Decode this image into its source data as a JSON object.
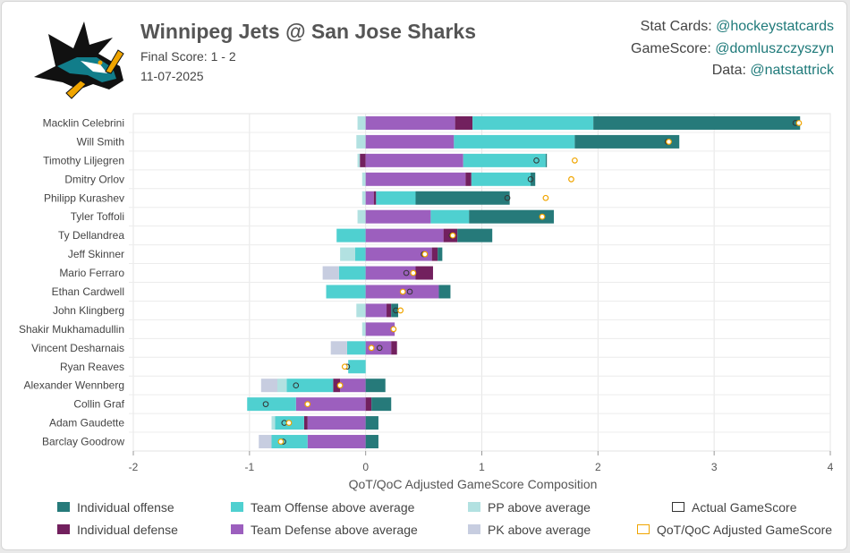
{
  "header": {
    "title": "Winnipeg Jets @ San Jose Sharks",
    "score_line": "Final Score: 1 - 2",
    "date": "11-07-2025"
  },
  "credits": [
    {
      "label": "Stat Cards: ",
      "handle": "@hockeystatcards"
    },
    {
      "label": "GameScore: ",
      "handle": "@domluszczyszyn"
    },
    {
      "label": "Data: ",
      "handle": "@natstattrick"
    }
  ],
  "colors": {
    "individual_offense": "#267a7a",
    "individual_defense": "#72205e",
    "team_offense": "#4fd0d0",
    "team_defense": "#9c5fbe",
    "pp": "#b2e1e1",
    "pk": "#c7cde0",
    "actual_marker": "#333333",
    "adjusted_marker": "#f0a500",
    "logo_teal": "#117d8a",
    "logo_black": "#111111"
  },
  "chart_data": {
    "type": "bar",
    "orientation": "horizontal stacked",
    "xlabel": "QoT/QoC Adjusted GameScore Composition",
    "xlim": [
      -2,
      4
    ],
    "xticks": [
      "-2",
      "-1",
      "0",
      "1",
      "2",
      "3",
      "4"
    ],
    "grid": true,
    "legend_position": "bottom",
    "series_names": [
      "Individual offense",
      "Individual defense",
      "Team Offense above average",
      "Team Defense above average",
      "PP above average",
      "PK above average"
    ],
    "marker_names": [
      "Actual GameScore",
      "QoT/QoC Adjusted GameScore"
    ],
    "players": [
      {
        "name": "Macklin Celebrini",
        "ind_off": 1.78,
        "ind_def": 0.15,
        "team_off": 1.04,
        "team_def": 0.77,
        "pp": -0.07,
        "pk": 0,
        "actual": 3.7,
        "adjusted": 3.73
      },
      {
        "name": "Will Smith",
        "ind_off": 0.9,
        "ind_def": 0,
        "team_off": 1.04,
        "team_def": 0.76,
        "pp": -0.08,
        "pk": 0,
        "actual": 2.6,
        "adjusted": 2.61
      },
      {
        "name": "Timothy Liljegren",
        "ind_off": 0.01,
        "ind_def": -0.05,
        "team_off": 0.71,
        "team_def": 0.84,
        "pp": -0.02,
        "pk": 0,
        "actual": 1.47,
        "adjusted": 1.8
      },
      {
        "name": "Dmitry Orlov",
        "ind_off": 0.04,
        "ind_def": 0.05,
        "team_off": 0.51,
        "team_def": 0.86,
        "pp": -0.03,
        "pk": 0,
        "actual": 1.42,
        "adjusted": 1.77
      },
      {
        "name": "Philipp Kurashev",
        "ind_off": 0.81,
        "ind_def": 0.02,
        "team_off": 0.34,
        "team_def": 0.07,
        "pp": -0.03,
        "pk": 0,
        "actual": 1.22,
        "adjusted": 1.55
      },
      {
        "name": "Tyler Toffoli",
        "ind_off": 0.73,
        "ind_def": 0,
        "team_off": 0.33,
        "team_def": 0.56,
        "pp": -0.07,
        "pk": 0,
        "actual": 1.52,
        "adjusted": 1.52
      },
      {
        "name": "Ty Dellandrea",
        "ind_off": 0.3,
        "ind_def": 0.12,
        "team_off": 0,
        "team_def": 0.67,
        "pp": 0,
        "pk": 0,
        "team_off_neg": -0.25,
        "actual": 0.74,
        "adjusted": 0.75
      },
      {
        "name": "Jeff Skinner",
        "ind_off": 0.04,
        "ind_def": 0.05,
        "team_off": 0,
        "team_def": 0.57,
        "pp": -0.13,
        "pk": 0,
        "team_off_neg": -0.09,
        "actual": 0.5,
        "adjusted": 0.51
      },
      {
        "name": "Mario Ferraro",
        "ind_off": 0,
        "ind_def": 0.15,
        "team_off": 0,
        "team_def": 0.43,
        "pp": 0,
        "pk": -0.14,
        "team_off_neg": -0.23,
        "actual": 0.35,
        "adjusted": 0.41
      },
      {
        "name": "Ethan Cardwell",
        "ind_off": 0.1,
        "ind_def": 0,
        "team_off": 0,
        "team_def": 0.63,
        "pp": 0,
        "pk": 0,
        "team_off_neg": -0.34,
        "actual": 0.38,
        "adjusted": 0.32
      },
      {
        "name": "John Klingberg",
        "ind_off": 0.06,
        "ind_def": 0.04,
        "team_off": 0,
        "team_def": 0.18,
        "pp": -0.08,
        "pk": 0,
        "actual": 0.26,
        "adjusted": 0.3
      },
      {
        "name": "Shakir Mukhamadullin",
        "ind_off": 0,
        "ind_def": 0,
        "team_off": 0,
        "team_def": 0.25,
        "pp": -0.03,
        "pk": 0,
        "actual": 0.24,
        "adjusted": 0.24
      },
      {
        "name": "Vincent Desharnais",
        "ind_off": 0,
        "ind_def": 0.05,
        "team_off": 0,
        "team_def": 0.22,
        "pp": 0,
        "pk": -0.14,
        "team_off_neg": -0.16,
        "actual": 0.12,
        "adjusted": 0.05
      },
      {
        "name": "Ryan Reaves",
        "ind_off": 0,
        "ind_def": 0,
        "team_off": 0,
        "team_def": 0,
        "pp": 0,
        "pk": 0,
        "team_off_neg": -0.15,
        "actual": -0.16,
        "adjusted": -0.18
      },
      {
        "name": "Alexander Wennberg",
        "ind_off": 0.17,
        "ind_def": -0.06,
        "team_off": 0,
        "team_def": -0.22,
        "pp": -0.08,
        "pk": -0.14,
        "team_off_neg": -0.4,
        "actual": -0.6,
        "adjusted": -0.22
      },
      {
        "name": "Collin Graf",
        "ind_off": 0.17,
        "ind_def": 0.05,
        "team_off": 0,
        "team_def": -0.6,
        "pp": 0,
        "pk": 0,
        "team_off_neg": -0.42,
        "actual": -0.86,
        "adjusted": -0.5
      },
      {
        "name": "Adam Gaudette",
        "ind_off": 0.11,
        "ind_def": -0.03,
        "team_off": 0,
        "team_def": -0.5,
        "pp": -0.03,
        "pk": 0,
        "team_off_neg": -0.25,
        "actual": -0.7,
        "adjusted": -0.66
      },
      {
        "name": "Barclay Goodrow",
        "ind_off": 0.11,
        "ind_def": 0,
        "team_off": 0,
        "team_def": -0.5,
        "pp": 0,
        "pk": -0.11,
        "team_off_neg": -0.31,
        "actual": -0.71,
        "adjusted": -0.73
      }
    ]
  }
}
